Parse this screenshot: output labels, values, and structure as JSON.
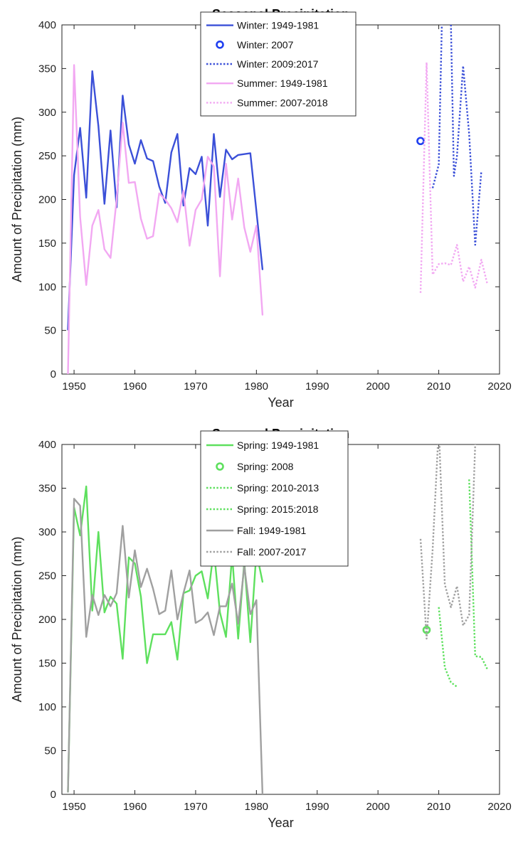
{
  "chart_data": [
    {
      "type": "line",
      "title": "Seasonal Precipitation",
      "xlabel": "Year",
      "ylabel": "Amount of Precipitation (mm)",
      "xlim": [
        1948,
        2020
      ],
      "ylim": [
        0,
        400
      ],
      "xticks": [
        1950,
        1960,
        1970,
        1980,
        1990,
        2000,
        2010,
        2020
      ],
      "yticks": [
        0,
        50,
        100,
        150,
        200,
        250,
        300,
        350,
        400
      ],
      "grid": false,
      "legend_position": "top-center",
      "series": [
        {
          "name": "Winter: 1949-1981",
          "color": "#3b50d8",
          "style": "solid",
          "x": [
            1949,
            1950,
            1951,
            1952,
            1953,
            1954,
            1955,
            1956,
            1957,
            1958,
            1959,
            1960,
            1961,
            1962,
            1963,
            1964,
            1965,
            1966,
            1967,
            1968,
            1969,
            1970,
            1971,
            1972,
            1973,
            1974,
            1975,
            1976,
            1977,
            1979,
            1981
          ],
          "y": [
            51,
            228,
            282,
            202,
            347,
            284,
            195,
            279,
            191,
            319,
            263,
            241,
            268,
            247,
            244,
            215,
            196,
            254,
            275,
            193,
            236,
            229,
            249,
            170,
            275,
            203,
            257,
            246,
            251,
            253,
            120
          ]
        },
        {
          "name": "Winter: 2007",
          "color": "#1f3ff0",
          "style": "marker",
          "x": [
            2007
          ],
          "y": [
            267
          ]
        },
        {
          "name": "Winter: 2009:2017",
          "color": "#3b50d8",
          "style": "dotted",
          "x": [
            2009,
            2010,
            2010.5,
            2011,
            2012,
            2012.5,
            2013,
            2014,
            2015,
            2016,
            2017
          ],
          "y": [
            213,
            240,
            400,
            480,
            400,
            227,
            250,
            353,
            275,
            148,
            232
          ]
        },
        {
          "name": "Summer: 1949-1981",
          "color": "#f2a8f2",
          "style": "solid",
          "x": [
            1949,
            1950,
            1951,
            1952,
            1953,
            1954,
            1955,
            1956,
            1957,
            1958,
            1959,
            1960,
            1961,
            1962,
            1963,
            1964,
            1965,
            1966,
            1967,
            1968,
            1969,
            1970,
            1971,
            1972,
            1973,
            1974,
            1975,
            1976,
            1977,
            1978,
            1979,
            1980,
            1981
          ],
          "y": [
            0,
            354,
            180,
            102,
            170,
            188,
            143,
            133,
            200,
            288,
            219,
            220,
            178,
            155,
            158,
            207,
            200,
            190,
            174,
            210,
            147,
            188,
            200,
            249,
            238,
            112,
            241,
            177,
            224,
            168,
            140,
            170,
            68
          ]
        },
        {
          "name": "Summer: 2007-2018",
          "color": "#f2a8f2",
          "style": "dotted",
          "x": [
            2007,
            2008,
            2009,
            2010,
            2011,
            2012,
            2013,
            2014,
            2015,
            2016,
            2017,
            2018
          ],
          "y": [
            93,
            357,
            114,
            126,
            127,
            125,
            148,
            106,
            123,
            99,
            131,
            103
          ]
        }
      ]
    },
    {
      "type": "line",
      "title": "Seasonal Precipitation",
      "xlabel": "Year",
      "ylabel": "Amount of Precipitation (mm)",
      "xlim": [
        1948,
        2020
      ],
      "ylim": [
        0,
        400
      ],
      "xticks": [
        1950,
        1960,
        1970,
        1980,
        1990,
        2000,
        2010,
        2020
      ],
      "yticks": [
        0,
        50,
        100,
        150,
        200,
        250,
        300,
        350,
        400
      ],
      "grid": false,
      "legend_position": "top-center",
      "series": [
        {
          "name": "Spring: 1949-1981",
          "color": "#5ee05e",
          "style": "solid",
          "x": [
            1949,
            1950,
            1951,
            1952,
            1953,
            1954,
            1955,
            1956,
            1957,
            1958,
            1959,
            1960,
            1961,
            1962,
            1963,
            1964,
            1965,
            1966,
            1967,
            1968,
            1969,
            1970,
            1971,
            1972,
            1973,
            1974,
            1975,
            1976,
            1977,
            1978,
            1979,
            1980,
            1981
          ],
          "y": [
            3,
            328,
            296,
            352,
            210,
            300,
            208,
            226,
            218,
            155,
            271,
            264,
            226,
            150,
            183,
            183,
            183,
            197,
            154,
            230,
            233,
            250,
            255,
            224,
            280,
            208,
            180,
            274,
            178,
            266,
            174,
            277,
            243
          ]
        },
        {
          "name": "Spring: 2008",
          "color": "#5ee05e",
          "style": "marker",
          "x": [
            2008
          ],
          "y": [
            188
          ]
        },
        {
          "name": "Spring: 2010-2013",
          "color": "#5ee05e",
          "style": "dotted",
          "x": [
            2010,
            2011,
            2012,
            2013
          ],
          "y": [
            214,
            145,
            128,
            123
          ]
        },
        {
          "name": "Spring: 2015:2018",
          "color": "#5ee05e",
          "style": "dotted",
          "x": [
            2015,
            2016,
            2017,
            2018
          ],
          "y": [
            360,
            158,
            157,
            143
          ]
        },
        {
          "name": "Fall: 1949-1981",
          "color": "#a0a0a0",
          "style": "solid",
          "x": [
            1949,
            1950,
            1951,
            1952,
            1953,
            1954,
            1955,
            1956,
            1957,
            1958,
            1959,
            1960,
            1961,
            1962,
            1963,
            1964,
            1965,
            1966,
            1967,
            1968,
            1969,
            1970,
            1971,
            1972,
            1973,
            1974,
            1975,
            1976,
            1977,
            1978,
            1979,
            1980,
            1981
          ],
          "y": [
            3,
            338,
            330,
            180,
            228,
            205,
            228,
            215,
            230,
            307,
            225,
            279,
            237,
            258,
            235,
            206,
            210,
            256,
            200,
            230,
            256,
            196,
            200,
            208,
            182,
            215,
            215,
            241,
            195,
            261,
            206,
            222,
            0
          ]
        },
        {
          "name": "Fall: 2007-2017",
          "color": "#a0a0a0",
          "style": "dotted",
          "x": [
            2007,
            2008,
            2009,
            2010,
            2011,
            2012,
            2013,
            2014,
            2015,
            2016,
            2017
          ],
          "y": [
            292,
            178,
            280,
            420,
            240,
            214,
            238,
            193,
            205,
            400,
            490
          ]
        }
      ]
    }
  ]
}
